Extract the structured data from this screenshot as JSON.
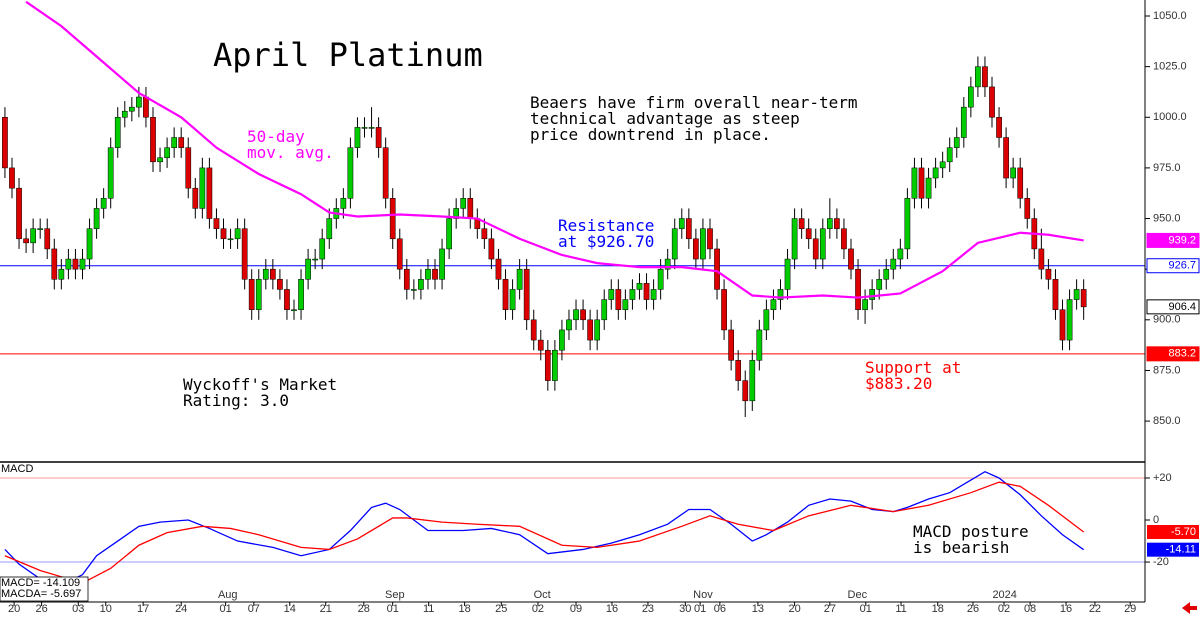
{
  "chart_data": [
    {
      "type": "candlestick",
      "title": "April Platinum",
      "xlim": [
        -0.7,
        161.7
      ],
      "ylim": [
        829.8,
        1057.9
      ],
      "yticks": [
        {
          "value": 850,
          "label": "850.0"
        },
        {
          "value": 875,
          "label": "875.0"
        },
        {
          "value": 900,
          "label": "900.0"
        },
        {
          "value": 925,
          "label": "925.0"
        },
        {
          "value": 950,
          "label": "950.0"
        },
        {
          "value": 975,
          "label": "975.0"
        },
        {
          "value": 1000,
          "label": "1000.0"
        },
        {
          "value": 1025,
          "label": "1025.0"
        },
        {
          "value": 1050,
          "label": "1050.0"
        }
      ],
      "up_color": "#00cc00",
      "down_color": "#dd0000",
      "open": [
        1000,
        975,
        965,
        940,
        938,
        945,
        945,
        935,
        920,
        925,
        930,
        925,
        930,
        945,
        955,
        960,
        985,
        1000,
        1003,
        1005,
        1010,
        1000,
        978,
        980,
        985,
        990,
        985,
        965,
        955,
        975,
        950,
        945,
        940,
        940,
        945,
        920,
        905,
        920,
        925,
        920,
        915,
        905,
        905,
        920,
        930,
        930,
        940,
        950,
        955,
        960,
        985,
        995,
        995,
        995,
        985,
        960,
        940,
        925,
        915,
        915,
        920,
        925,
        920,
        935,
        950,
        955,
        960,
        950,
        945,
        940,
        930,
        920,
        905,
        915,
        925,
        900,
        890,
        885,
        870,
        885,
        895,
        900,
        905,
        900,
        890,
        900,
        910,
        915,
        905,
        910,
        915,
        918,
        910,
        915,
        925,
        930,
        945,
        950,
        940,
        930,
        945,
        935,
        915,
        895,
        880,
        870,
        860,
        880,
        895,
        905,
        910,
        915,
        930,
        950,
        945,
        940,
        930,
        945,
        950,
        945,
        935,
        925,
        905,
        910,
        915,
        920,
        925,
        930,
        935,
        960,
        975,
        960,
        970,
        975,
        978,
        985,
        990,
        1005,
        1015,
        1025,
        1015,
        1000,
        990,
        970,
        975,
        960,
        950,
        935,
        925,
        920,
        905,
        890,
        910,
        915
      ],
      "high": [
        1005,
        980,
        970,
        945,
        950,
        950,
        950,
        940,
        930,
        935,
        935,
        935,
        950,
        960,
        965,
        990,
        1005,
        1008,
        1010,
        1015,
        1015,
        1005,
        985,
        990,
        995,
        995,
        990,
        970,
        980,
        980,
        955,
        950,
        945,
        950,
        950,
        925,
        925,
        930,
        930,
        925,
        920,
        910,
        925,
        935,
        935,
        945,
        955,
        960,
        965,
        990,
        1000,
        1000,
        1005,
        1000,
        990,
        965,
        945,
        930,
        920,
        925,
        930,
        930,
        940,
        955,
        960,
        965,
        965,
        955,
        950,
        945,
        935,
        925,
        920,
        930,
        930,
        905,
        895,
        890,
        890,
        900,
        905,
        910,
        910,
        905,
        905,
        915,
        920,
        920,
        915,
        920,
        923,
        923,
        920,
        930,
        935,
        950,
        955,
        955,
        945,
        950,
        950,
        940,
        920,
        900,
        885,
        875,
        885,
        900,
        910,
        915,
        920,
        935,
        955,
        955,
        950,
        945,
        950,
        960,
        955,
        950,
        940,
        930,
        915,
        920,
        925,
        930,
        935,
        940,
        965,
        980,
        980,
        975,
        980,
        983,
        990,
        995,
        1010,
        1020,
        1030,
        1030,
        1020,
        1005,
        995,
        980,
        980,
        965,
        955,
        945,
        930,
        925,
        910,
        915,
        920,
        920
      ],
      "low": [
        970,
        960,
        935,
        933,
        933,
        940,
        930,
        915,
        915,
        920,
        920,
        920,
        925,
        940,
        950,
        955,
        980,
        995,
        998,
        1000,
        995,
        973,
        973,
        975,
        980,
        980,
        960,
        950,
        950,
        945,
        940,
        935,
        935,
        935,
        915,
        900,
        900,
        915,
        915,
        910,
        900,
        900,
        900,
        915,
        925,
        925,
        935,
        945,
        950,
        955,
        980,
        990,
        990,
        980,
        955,
        935,
        920,
        910,
        910,
        910,
        915,
        915,
        915,
        930,
        945,
        950,
        945,
        940,
        935,
        925,
        915,
        900,
        900,
        910,
        895,
        885,
        880,
        865,
        865,
        880,
        890,
        895,
        895,
        885,
        885,
        895,
        905,
        900,
        900,
        905,
        910,
        905,
        905,
        910,
        920,
        925,
        940,
        935,
        925,
        925,
        930,
        910,
        890,
        875,
        865,
        852,
        855,
        875,
        890,
        900,
        905,
        910,
        925,
        940,
        935,
        925,
        925,
        940,
        940,
        930,
        920,
        900,
        898,
        905,
        910,
        915,
        920,
        925,
        930,
        955,
        955,
        955,
        965,
        970,
        973,
        980,
        985,
        1000,
        1010,
        1010,
        995,
        985,
        965,
        965,
        955,
        945,
        930,
        920,
        915,
        900,
        885,
        885,
        905,
        900
      ],
      "close": [
        975,
        965,
        940,
        938,
        945,
        945,
        935,
        920,
        925,
        930,
        925,
        930,
        945,
        955,
        960,
        985,
        1000,
        1003,
        1005,
        1010,
        1000,
        978,
        980,
        985,
        990,
        985,
        965,
        955,
        975,
        950,
        945,
        940,
        940,
        945,
        920,
        905,
        920,
        925,
        920,
        915,
        905,
        905,
        920,
        930,
        930,
        940,
        950,
        955,
        960,
        985,
        995,
        995,
        995,
        985,
        960,
        940,
        925,
        915,
        915,
        920,
        925,
        920,
        935,
        950,
        955,
        960,
        950,
        945,
        940,
        930,
        920,
        905,
        915,
        925,
        900,
        890,
        885,
        870,
        885,
        895,
        900,
        905,
        900,
        890,
        900,
        910,
        915,
        905,
        910,
        915,
        918,
        910,
        915,
        925,
        930,
        945,
        950,
        940,
        930,
        945,
        935,
        915,
        895,
        880,
        870,
        860,
        880,
        895,
        905,
        910,
        915,
        930,
        950,
        945,
        940,
        930,
        945,
        950,
        945,
        935,
        925,
        905,
        910,
        915,
        920,
        925,
        930,
        935,
        960,
        975,
        960,
        970,
        975,
        978,
        985,
        990,
        1005,
        1015,
        1025,
        1015,
        1000,
        990,
        970,
        975,
        960,
        950,
        935,
        925,
        920,
        905,
        890,
        910,
        915,
        906.4
      ],
      "ma": {
        "color": "#ff00ff",
        "x": [
          3,
          8,
          13,
          19,
          25,
          30,
          36,
          42,
          46,
          50,
          56,
          62,
          67,
          73,
          79,
          84,
          90,
          96,
          101,
          106,
          110,
          116,
          121,
          127,
          133,
          138,
          144,
          148,
          153
        ],
        "values": [
          1057,
          1045,
          1030,
          1012,
          1000,
          985,
          972,
          962,
          953,
          951,
          952,
          951,
          950,
          940,
          932,
          928,
          926,
          926,
          924,
          912,
          911,
          912,
          911,
          913,
          924,
          938,
          943,
          942,
          939.2
        ]
      },
      "lines": [
        {
          "value": 926.7,
          "color": "#0000ff",
          "box": "outline"
        },
        {
          "value": 883.2,
          "color": "#ff0000",
          "box": "fill"
        }
      ],
      "annotations": [
        {
          "lines": [
            "Beaers have firm overall near-term",
            "technical advantage as steep",
            "price downtrend in place."
          ],
          "color": "#000000"
        },
        {
          "lines": [
            "50-day",
            "mov. avg."
          ],
          "color": "#ff00ff"
        },
        {
          "lines": [
            "Resistance",
            "at $926.70"
          ],
          "color": "#0000ff"
        },
        {
          "lines": [
            "Support at",
            "$883.20"
          ],
          "color": "#ff0000"
        },
        {
          "lines": [
            "Wyckoff's Market",
            "Rating: 3.0"
          ],
          "color": "#000000"
        }
      ]
    },
    {
      "type": "line",
      "label": "MACD",
      "xlim": [
        -0.7,
        161.7
      ],
      "ylim": [
        -39,
        27.6
      ],
      "yticks": [
        {
          "value": 20,
          "label": "+20"
        },
        0,
        -20
      ],
      "ref_lines": [
        {
          "value": 20,
          "color": "#ff9999"
        },
        {
          "value": -20,
          "color": "#9999ff"
        }
      ],
      "xticks": [
        {
          "value": 1.3,
          "label": "20"
        },
        {
          "value": 5.2,
          "label": "26"
        },
        {
          "value": 10.4,
          "label": "03"
        },
        {
          "value": 14.3,
          "label": "10"
        },
        {
          "value": 19.6,
          "label": "17"
        },
        {
          "value": 25,
          "label": "24"
        },
        {
          "value": 31.3,
          "label": "01"
        },
        {
          "value": 35.3,
          "label": "07"
        },
        {
          "value": 40.4,
          "label": "14"
        },
        {
          "value": 45.5,
          "label": "21"
        },
        {
          "value": 50.9,
          "label": "28"
        },
        {
          "value": 55,
          "label": "01"
        },
        {
          "value": 60.1,
          "label": "11"
        },
        {
          "value": 65.2,
          "label": "18"
        },
        {
          "value": 70.4,
          "label": "25"
        },
        {
          "value": 75.6,
          "label": "02"
        },
        {
          "value": 81,
          "label": "09"
        },
        {
          "value": 86.1,
          "label": "16"
        },
        {
          "value": 91.2,
          "label": "23"
        },
        {
          "value": 96.5,
          "label": "30"
        },
        {
          "value": 98.6,
          "label": "01"
        },
        {
          "value": 101.4,
          "label": "06"
        },
        {
          "value": 106.8,
          "label": "13"
        },
        {
          "value": 112,
          "label": "20"
        },
        {
          "value": 117,
          "label": "27"
        },
        {
          "value": 122.1,
          "label": "01"
        },
        {
          "value": 127.1,
          "label": "11"
        },
        {
          "value": 132.3,
          "label": "18"
        },
        {
          "value": 137.3,
          "label": "26"
        },
        {
          "value": 141.7,
          "label": "02"
        },
        {
          "value": 145.4,
          "label": "08"
        },
        {
          "value": 150.5,
          "label": "16"
        },
        {
          "value": 154.6,
          "label": "22"
        },
        {
          "value": 159.6,
          "label": "29"
        }
      ],
      "month_ticks": [
        {
          "value": 31.6,
          "label": "Aug"
        },
        {
          "value": 55.3,
          "label": "Sep"
        },
        {
          "value": 76.2,
          "label": "Oct"
        },
        {
          "value": 99,
          "label": "Nov"
        },
        {
          "value": 120.9,
          "label": "Dec"
        },
        {
          "value": 141.8,
          "label": "2024"
        }
      ],
      "series": [
        {
          "color": "#0000ff",
          "value_label": "-14.11",
          "x": [
            0,
            2,
            5,
            8,
            11,
            13,
            16,
            19,
            22,
            26,
            29,
            33,
            38,
            42,
            46,
            49,
            52,
            54,
            56,
            60,
            65,
            69,
            73,
            77,
            82,
            86,
            90,
            94,
            97,
            100,
            103,
            106,
            108,
            111,
            114,
            117,
            120,
            123,
            126,
            128,
            131,
            134,
            137,
            139,
            141,
            144,
            147,
            150,
            153
          ],
          "values": [
            -14,
            -21,
            -28,
            -31,
            -26,
            -17,
            -10,
            -3,
            -1,
            0,
            -4,
            -10,
            -13,
            -17,
            -14,
            -5,
            6,
            8,
            5,
            -5,
            -5,
            -4,
            -7,
            -16,
            -14,
            -11,
            -7,
            -2,
            5,
            5,
            -2,
            -10,
            -7,
            -1,
            7,
            10,
            9,
            5,
            4,
            6,
            10,
            13,
            19,
            23,
            20,
            12,
            2,
            -7,
            -14.109
          ]
        },
        {
          "color": "#ff0000",
          "value_label": "-5.70",
          "x": [
            0,
            5,
            11,
            15,
            19,
            23,
            28,
            32,
            36,
            42,
            46,
            50,
            55,
            57,
            62,
            67,
            73,
            79,
            84,
            90,
            96,
            100,
            104,
            109,
            114,
            120,
            126,
            131,
            137,
            141,
            144,
            148,
            153
          ],
          "values": [
            -17,
            -24,
            -30,
            -23,
            -12,
            -6,
            -3,
            -4,
            -7,
            -13,
            -14,
            -9,
            1,
            1,
            -1,
            -2,
            -3,
            -12,
            -13,
            -10,
            -3,
            2,
            -2,
            -5,
            2,
            7,
            4,
            7,
            13,
            18,
            16,
            7,
            -5.697
          ]
        }
      ],
      "legend": [
        "MACD= -14.109",
        "MACDA= -5.697"
      ],
      "annotations": [
        {
          "lines": [
            "MACD posture",
            "is bearish"
          ],
          "color": "#000000"
        }
      ]
    }
  ]
}
